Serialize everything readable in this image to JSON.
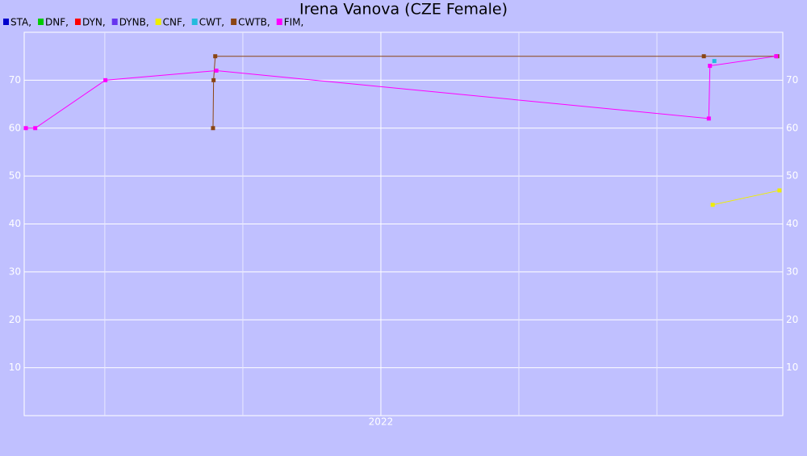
{
  "chart_data": {
    "type": "line",
    "title": "Irena Vanova (CZE Female)",
    "xlim": [
      2021.354,
      2022.728
    ],
    "ylim": [
      0,
      80
    ],
    "xticks": [
      {
        "value": 2022,
        "label": "2022"
      }
    ],
    "xgrid": [
      2021.5,
      2021.75,
      2022.25,
      2022.5
    ],
    "yticks": [
      10,
      20,
      30,
      40,
      50,
      60,
      70
    ],
    "grid": true,
    "series": [
      {
        "name": "STA,",
        "color": "#0000cc",
        "x": [],
        "values": []
      },
      {
        "name": "DNF,",
        "color": "#00cc00",
        "x": [],
        "values": []
      },
      {
        "name": "DYN,",
        "color": "#ff0000",
        "x": [],
        "values": []
      },
      {
        "name": "DYNB,",
        "color": "#6633ee",
        "x": [],
        "values": []
      },
      {
        "name": "CNF,",
        "color": "#eeee00",
        "x": [
          2022.601,
          2022.722
        ],
        "values": [
          44,
          47
        ]
      },
      {
        "name": "CWT,",
        "color": "#22bbdd",
        "x": [
          2022.604
        ],
        "values": [
          74
        ]
      },
      {
        "name": "CWTB,",
        "color": "#8b4513",
        "x": [
          2021.696,
          2021.697,
          2021.7,
          2022.585,
          2022.718
        ],
        "values": [
          60,
          70,
          75,
          75,
          75
        ]
      },
      {
        "name": "FIM,",
        "color": "#ff00ff",
        "x": [
          2021.357,
          2021.374,
          2021.501,
          2021.702,
          2022.594,
          2022.596,
          2022.716
        ],
        "values": [
          60,
          60,
          70,
          72,
          62,
          73,
          75
        ]
      }
    ]
  }
}
